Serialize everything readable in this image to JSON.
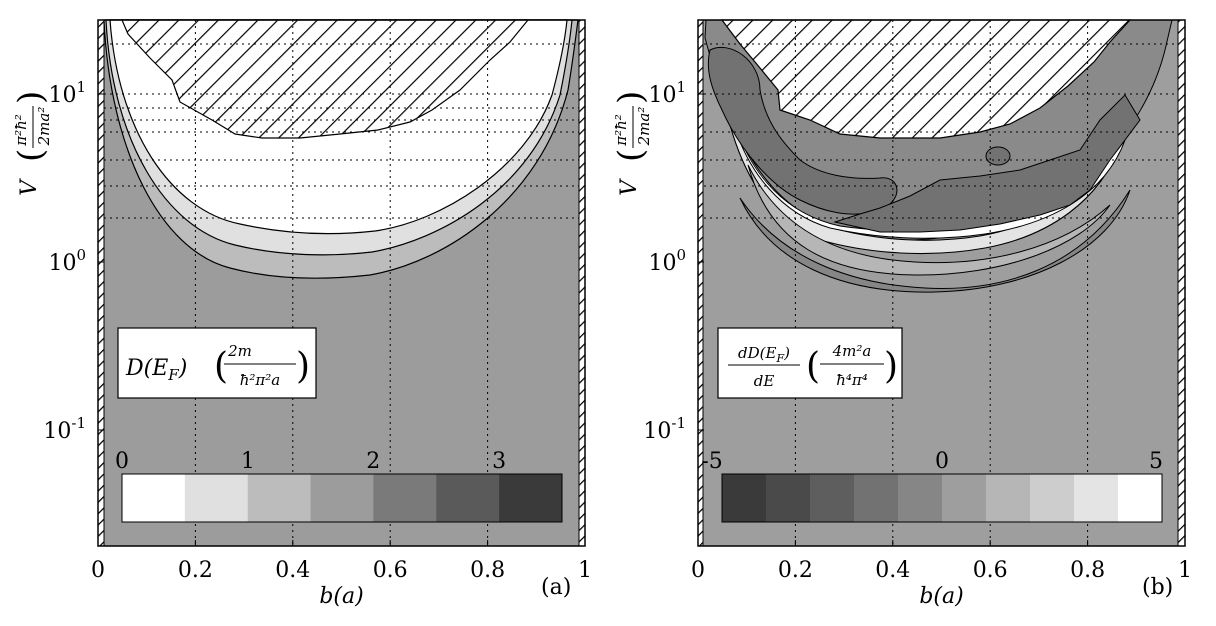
{
  "chart_data": [
    {
      "type": "heatmap",
      "panel_label": "(a)",
      "xlabel": "b(a)",
      "ylabel": "V",
      "ylabel_unit": "(π²ħ² / 2ma²)",
      "xlim": [
        0,
        1
      ],
      "ylim": [
        0.025,
        25
      ],
      "yscale": "log",
      "x_tick_labels": [
        "0",
        "0.2",
        "0.4",
        "0.6",
        "0.8",
        "1"
      ],
      "y_tick_labels": [
        {
          "base": "10",
          "exp": "1"
        },
        {
          "base": "10",
          "exp": "0"
        },
        {
          "base": "10",
          "exp": "-1"
        }
      ],
      "quantity": "D(E_F)",
      "quantity_unit": "(2m / ħ²π²a)",
      "colorbar": {
        "tick_labels": [
          "0",
          "1",
          "2",
          "3"
        ],
        "colors": [
          "#ffffff",
          "#e0e0e0",
          "#bcbcbc",
          "#9c9c9c",
          "#7a7a7a",
          "#5a5a5a",
          "#3a3a3a"
        ]
      },
      "background_value_color": "#9c9c9c",
      "hatched_region": "excluded",
      "grid": true
    },
    {
      "type": "heatmap",
      "panel_label": "(b)",
      "xlabel": "b(a)",
      "ylabel": "V",
      "ylabel_unit": "(π²ħ² / 2ma²)",
      "xlim": [
        0,
        1
      ],
      "ylim": [
        0.025,
        25
      ],
      "yscale": "log",
      "x_tick_labels": [
        "0",
        "0.2",
        "0.4",
        "0.6",
        "0.8",
        "1"
      ],
      "y_tick_labels": [
        {
          "base": "10",
          "exp": "1"
        },
        {
          "base": "10",
          "exp": "0"
        },
        {
          "base": "10",
          "exp": "-1"
        }
      ],
      "quantity": "dD(E_F)/dE",
      "quantity_unit": "(4m²a / ħ⁴π⁴)",
      "colorbar": {
        "tick_labels": [
          "-5",
          "0",
          "5"
        ],
        "colors": [
          "#3a3a3a",
          "#4a4a4a",
          "#5e5e5e",
          "#727272",
          "#868686",
          "#9e9e9e",
          "#b6b6b6",
          "#cdcdcd",
          "#e4e4e4",
          "#ffffff"
        ]
      },
      "background_value_color": "#9e9e9e",
      "hatched_region": "excluded",
      "grid": true
    }
  ]
}
